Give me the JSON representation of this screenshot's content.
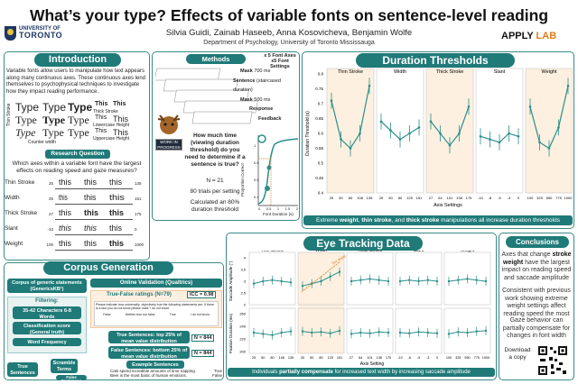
{
  "header": {
    "title": "What’s your type? Effects of variable fonts on sentence-level reading",
    "authors": "Silvia Guidi, Zainab Haseeb, Anna Kosovicheva, Benjamin Wolfe",
    "department": "Department of Psychology, University of Toronto Mississauga",
    "university_line1": "UNIVERSITY OF",
    "university_line2": "TORONTO",
    "lab_name_1": "APPLY",
    "lab_name_2": "LAB"
  },
  "introduction": {
    "heading": "Introduction",
    "body": "Variable fonts allow users to manipulate how text appears along many continuous axes. These continuous axes lend themselves to psychophysical techniques to investigate how they impact reading performance.",
    "thin_stroke_label": "Thin Stroke",
    "thick_stroke_label": "Thick Stroke",
    "lowercase_height_label": "Lowercase Height",
    "uppercase_height_label": "Uppercase Height",
    "counter_width_label": "Counter width",
    "type_word": "Type",
    "this_word": "This",
    "research_q_heading": "Research Question",
    "research_q_body": "Which axes within a variable font have the largest effects on reading speed and gaze measures?",
    "axes_rows": [
      {
        "label": "Thin Stroke",
        "min": "25",
        "max": "135"
      },
      {
        "label": "Width",
        "min": "25",
        "max": "151"
      },
      {
        "label": "Thick Stroke",
        "min": "27",
        "max": "175"
      },
      {
        "label": "Slant",
        "min": "-10",
        "max": "0"
      },
      {
        "label": "Weight",
        "min": "100",
        "max": "1000"
      }
    ],
    "sample_word": "this"
  },
  "methods": {
    "heading": "Methods",
    "axes_note_1": "x 5 Font Axes",
    "axes_note_2": "x5 Font Settings",
    "steps": [
      {
        "label": "Mask",
        "detail": "700 ms"
      },
      {
        "label": "Sentence",
        "detail": "(staircased duration)"
      },
      {
        "label": "Mask",
        "detail": "500 ms"
      },
      {
        "label": "Response",
        "detail": ""
      },
      {
        "label": "Feedback",
        "detail": ""
      }
    ],
    "badge": "WORK IN PROGRESS",
    "question": "How much time (viewing duration threshold) do you need to determine if a sentence is true?",
    "n": "N = 21",
    "trials": "80 trials per setting",
    "calc": "Calculated an 80% duration threshold",
    "plot_ylabel": "Proportion Correct",
    "plot_xlabel": "Font Duration (s)",
    "plot_y_ticks": [
      "1",
      "0.8",
      "0.6",
      "0.4"
    ],
    "plot_x_ticks": [
      "0",
      "0.5",
      "1",
      "1.5",
      "2"
    ]
  },
  "duration_thresholds": {
    "heading": "Duration Thresholds",
    "ylabel": "Duration Threshold (s)",
    "xlabel": "Axis Settings",
    "caption_parts": [
      "Extreme ",
      "weight",
      ", ",
      "thin stroke",
      ", and ",
      "thick stroke",
      " manipulations all increase duration thresholds"
    ],
    "panel_titles": [
      "Thin Stroke",
      "Width",
      "Thick Stroke",
      "Slant",
      "Weight"
    ],
    "y_ticks": [
      "0.8",
      "0.75",
      "0.7",
      "0.65",
      "0.6",
      "0.55",
      "0.5",
      "0.45",
      "0.4"
    ]
  },
  "chart_data": [
    {
      "type": "line",
      "title": "Thin Stroke",
      "xlabel": "Axis Settings",
      "ylabel": "Duration Threshold (s)",
      "categories": [
        "25",
        "50",
        "80",
        "108",
        "135"
      ],
      "values": [
        0.71,
        0.58,
        0.55,
        0.6,
        0.76
      ],
      "ylim": [
        0.4,
        0.8
      ]
    },
    {
      "type": "line",
      "title": "Width",
      "categories": [
        "25",
        "50",
        "80",
        "125",
        "151"
      ],
      "values": [
        0.64,
        0.61,
        0.58,
        0.6,
        0.62
      ],
      "ylim": [
        0.4,
        0.8
      ]
    },
    {
      "type": "line",
      "title": "Thick Stroke",
      "categories": [
        "27",
        "64",
        "101",
        "138",
        "175"
      ],
      "values": [
        0.64,
        0.6,
        0.56,
        0.6,
        0.69
      ],
      "ylim": [
        0.4,
        0.8
      ]
    },
    {
      "type": "line",
      "title": "Slant",
      "categories": [
        "-10",
        "-8",
        "-5",
        "-3",
        "0"
      ],
      "values": [
        0.59,
        0.58,
        0.57,
        0.6,
        0.59
      ],
      "ylim": [
        0.4,
        0.8
      ]
    },
    {
      "type": "line",
      "title": "Weight",
      "categories": [
        "100",
        "325",
        "550",
        "775",
        "1000"
      ],
      "values": [
        0.69,
        0.57,
        0.55,
        0.62,
        0.76
      ],
      "ylim": [
        0.4,
        0.8
      ]
    }
  ],
  "eye_tracking": {
    "heading": "Eye Tracking Data",
    "ylabel_top": "Saccade Amplitude (°)",
    "ylabel_bottom": "Fixation Duration (ms)",
    "xlabel": "Axis Setting",
    "panel_titles": [
      "Thin Stroke",
      "Width",
      "Thick Stroke",
      "Slant",
      "Weight"
    ],
    "x_ticks": [
      [
        "25",
        "50",
        "80",
        "108",
        "135"
      ],
      [
        "25",
        "50",
        "80",
        "125",
        "151"
      ],
      [
        "27",
        "64",
        "101",
        "138",
        "175"
      ],
      [
        "-10",
        "-8",
        "-5",
        "-3",
        "0"
      ],
      [
        "100",
        "325",
        "550",
        "775",
        "1000"
      ]
    ],
    "top_y_ticks": [
      "4",
      "3.5",
      "3",
      "2.5",
      "2"
    ],
    "bottom_y_ticks": [
      "260",
      "240",
      "220",
      "200"
    ],
    "annotation": "Text Width",
    "caption_parts": [
      "Individuals ",
      "partially compensate",
      " for increased text width by increasing saccade amplitude"
    ],
    "saccade": [
      [
        2.9,
        3.0,
        3.05,
        3.0,
        2.95
      ],
      [
        2.8,
        2.9,
        3.0,
        3.2,
        3.4
      ],
      [
        3.0,
        3.05,
        3.1,
        3.05,
        3.0
      ],
      [
        3.0,
        3.05,
        3.0,
        3.05,
        3.0
      ],
      [
        3.0,
        3.05,
        3.1,
        3.05,
        3.0
      ]
    ],
    "fixation": [
      [
        230,
        228,
        226,
        230,
        232
      ],
      [
        232,
        230,
        231,
        229,
        233
      ],
      [
        228,
        230,
        229,
        231,
        230
      ],
      [
        230,
        229,
        231,
        230,
        229
      ],
      [
        228,
        231,
        230,
        232,
        233
      ]
    ]
  },
  "corpus": {
    "heading": "Corpus Generation",
    "generic_box": "Corpus of generic statements (GenericsKB¹)",
    "filtering": "Filtering:",
    "filters": [
      "35-42 Characters 6-8 Words",
      "Classification score (General truth)",
      "Word Frequency"
    ],
    "scramble": "Scramble Terms",
    "true_sent": "True Sentences",
    "false_sent": "False Sentences",
    "online_validation": "Online Validation (Qualtrics)",
    "true_false_ratings": "True-False ratings (N=79)",
    "icc": "ICC = 0.98",
    "survey_text": "Please indicate how universally, objectively true the following statements are. If there is a fact you do not know please mark 'I do not know'",
    "scale_labels": [
      "False",
      "Neither true nor false",
      "True",
      "I do not know"
    ],
    "true_top": "True Sentences: top 25% of mean value distribution",
    "n_true": "N = 844",
    "false_bottom": "False Sentences: bottom 25% of mean value distribution",
    "n_false": "N = 844",
    "examples_heading": "Example Sentences",
    "examples": [
      {
        "text": "Cats spend incredible amounts of time napping.",
        "label": "True"
      },
      {
        "text": "Beer is the most basic of human emotions.",
        "label": "False"
      },
      {
        "text": "Companies are the only animals that carry tears.",
        "label": "False"
      }
    ],
    "reference": "¹Bhakthavatsalam, S., Anastasiades, C., & Clark, P. (2020). GenericsKB: A Knowledge Base of Generic Statements."
  },
  "conclusions": {
    "heading": "Conclusions",
    "p1_parts": [
      "Axes that change ",
      "stroke weight",
      " have the largest impact on reading speed and saccade amplitude"
    ],
    "p2": "Consistent with previous work showing extreme weight settings affect reading speed the most",
    "p3": "Gaze behavior can partially compensate for changes in font width",
    "download": "Download a copy"
  },
  "colors": {
    "teal": "#1f7a78",
    "orange": "#e07b1a",
    "line": "#2a8f8a"
  }
}
